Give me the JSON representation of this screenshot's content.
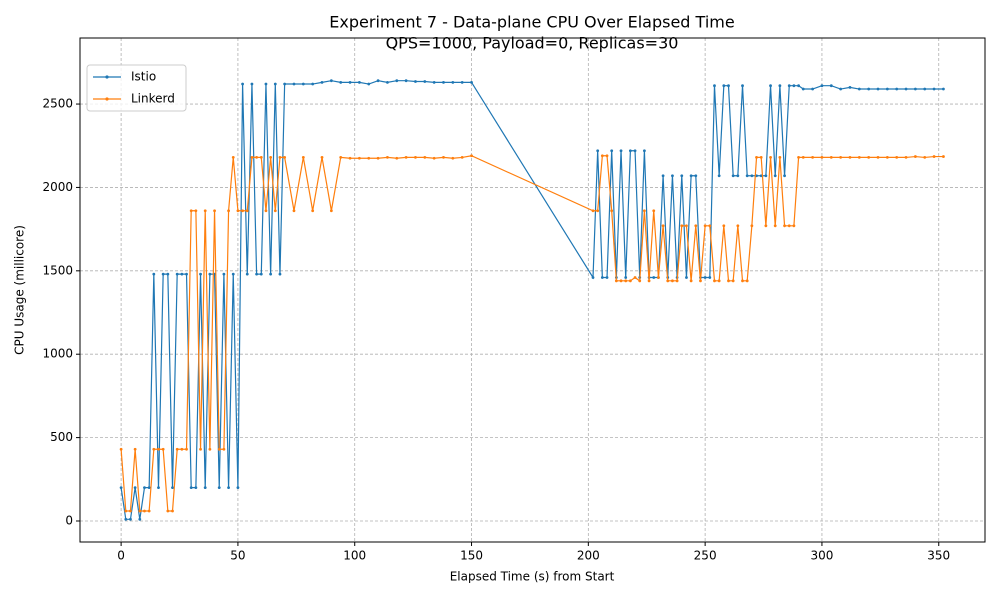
{
  "chart_data": {
    "type": "line",
    "title": "Experiment 7 - Data-plane CPU Over Elapsed Time",
    "subtitle": "QPS=1000, Payload=0, Replicas=30",
    "x_label": "Elapsed Time (s) from Start",
    "y_label": "CPU Usage (millicore)",
    "x": [
      0,
      2,
      4,
      6,
      8,
      10,
      12,
      14,
      16,
      18,
      20,
      22,
      24,
      26,
      28,
      30,
      32,
      34,
      36,
      38,
      40,
      42,
      44,
      46,
      48,
      50,
      52,
      54,
      56,
      58,
      60,
      62,
      64,
      66,
      68,
      70,
      74,
      78,
      82,
      86,
      90,
      94,
      98,
      102,
      106,
      110,
      114,
      118,
      122,
      126,
      130,
      134,
      138,
      142,
      146,
      150,
      202,
      204,
      206,
      208,
      210,
      212,
      214,
      216,
      218,
      220,
      222,
      224,
      226,
      228,
      230,
      232,
      234,
      236,
      238,
      240,
      242,
      244,
      246,
      248,
      250,
      252,
      254,
      256,
      258,
      260,
      262,
      264,
      266,
      268,
      270,
      272,
      274,
      276,
      278,
      280,
      282,
      284,
      286,
      288,
      290,
      292,
      296,
      300,
      304,
      308,
      312,
      316,
      320,
      324,
      328,
      332,
      336,
      340,
      344,
      348,
      352
    ],
    "series": [
      {
        "name": "Istio",
        "color": "#1f77b4",
        "values": [
          200,
          10,
          10,
          200,
          10,
          200,
          200,
          1480,
          200,
          1480,
          1480,
          200,
          1480,
          1480,
          1480,
          200,
          200,
          1480,
          200,
          1480,
          1480,
          200,
          1480,
          200,
          1480,
          200,
          2620,
          1480,
          2620,
          1480,
          1480,
          2620,
          1480,
          2620,
          1480,
          2620,
          2620,
          2620,
          2620,
          2630,
          2640,
          2630,
          2630,
          2630,
          2620,
          2640,
          2630,
          2640,
          2640,
          2635,
          2635,
          2630,
          2630,
          2630,
          2630,
          2630,
          1460,
          2220,
          1460,
          1460,
          2220,
          1460,
          2220,
          1460,
          2220,
          2220,
          1460,
          2220,
          1460,
          1460,
          1460,
          2070,
          1460,
          2070,
          1460,
          2070,
          1460,
          2070,
          2070,
          1460,
          1460,
          1460,
          2610,
          2070,
          2610,
          2610,
          2070,
          2070,
          2610,
          2070,
          2070,
          2070,
          2070,
          2070,
          2610,
          2070,
          2610,
          2070,
          2610,
          2610,
          2610,
          2590,
          2590,
          2610,
          2610,
          2590,
          2600,
          2590,
          2590,
          2590,
          2590,
          2590,
          2590,
          2590,
          2590,
          2590,
          2590
        ]
      },
      {
        "name": "Linkerd",
        "color": "#ff7f0e",
        "values": [
          430,
          60,
          60,
          430,
          60,
          60,
          60,
          430,
          430,
          430,
          60,
          60,
          430,
          430,
          430,
          1860,
          1860,
          430,
          1860,
          430,
          1860,
          430,
          430,
          1860,
          2180,
          1860,
          1860,
          1860,
          2180,
          2180,
          2180,
          1860,
          2180,
          1860,
          2180,
          2180,
          1860,
          2180,
          1860,
          2180,
          1860,
          2180,
          2175,
          2175,
          2175,
          2175,
          2180,
          2175,
          2180,
          2180,
          2180,
          2175,
          2180,
          2175,
          2180,
          2190,
          1860,
          1860,
          2190,
          2190,
          1860,
          1440,
          1440,
          1440,
          1440,
          1460,
          1440,
          1860,
          1440,
          1860,
          1460,
          1770,
          1440,
          1440,
          1440,
          1770,
          1770,
          1440,
          1770,
          1440,
          1770,
          1770,
          1440,
          1440,
          1770,
          1440,
          1440,
          1770,
          1440,
          1440,
          1770,
          2180,
          2180,
          1770,
          2180,
          1770,
          2180,
          1770,
          1770,
          1770,
          2180,
          2180,
          2180,
          2180,
          2180,
          2180,
          2180,
          2180,
          2180,
          2180,
          2180,
          2180,
          2180,
          2185,
          2180,
          2185,
          2185
        ]
      }
    ],
    "xlim": [
      -17.6,
      369.8
    ],
    "xticks": [
      0,
      50,
      100,
      150,
      200,
      250,
      300,
      350
    ],
    "ylim": [
      -126,
      2896
    ],
    "yticks": [
      0,
      500,
      1000,
      1500,
      2000,
      2500
    ],
    "grid": true,
    "legend": "upper-left"
  }
}
